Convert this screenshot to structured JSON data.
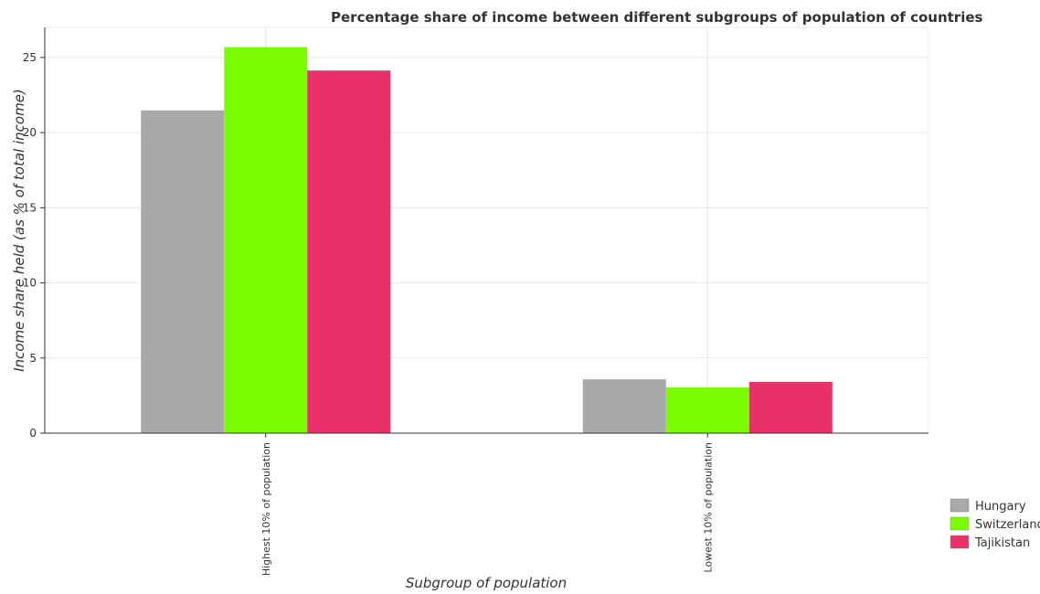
{
  "chart_data": {
    "type": "bar",
    "title": "Percentage share of income between different subgroups of population of countries",
    "xlabel": "Subgroup of population",
    "ylabel": "Income share held (as % of total income)",
    "categories": [
      "Highest 10% of population",
      "Lowest 10% of population"
    ],
    "series": [
      {
        "name": "Hungary",
        "color": "#a9a9a9",
        "values": [
          21.48,
          3.58
        ]
      },
      {
        "name": "Switzerland",
        "color": "#7cfc00",
        "values": [
          25.69,
          3.04
        ]
      },
      {
        "name": "Tajikistan",
        "color": "#e8306a",
        "values": [
          24.13,
          3.41
        ]
      }
    ],
    "ylim": [
      0,
      27
    ],
    "yticks": [
      0,
      5,
      10,
      15,
      20,
      25
    ],
    "grid": true,
    "legend_position": "bottom-right"
  }
}
